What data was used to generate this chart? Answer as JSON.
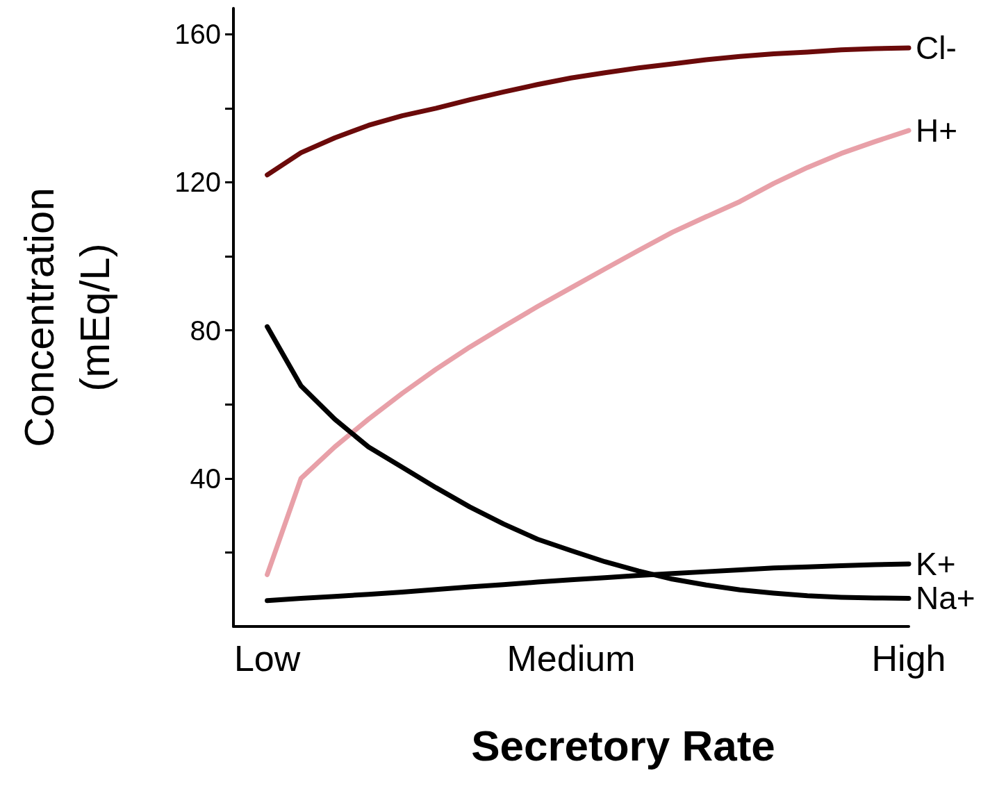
{
  "chart_data": {
    "type": "line",
    "xlabel": "Secretory Rate",
    "ylabel": "Concentration\n(mEq/L)",
    "categories": [
      null,
      "Low",
      null,
      null,
      null,
      null,
      null,
      null,
      null,
      null,
      "Medium",
      null,
      null,
      null,
      null,
      null,
      null,
      null,
      null,
      null,
      "High"
    ],
    "ylim": [
      0,
      167
    ],
    "yticks": [
      {
        "value": 20,
        "label": null
      },
      40,
      {
        "value": 60,
        "label": null
      },
      80,
      {
        "value": 100,
        "label": null
      },
      120,
      {
        "value": 140,
        "label": null
      },
      160
    ],
    "grid": false,
    "legend": false,
    "marker": "none",
    "line_style": "solid",
    "series": [
      {
        "name": "Cl-",
        "color": "#6b0a0a",
        "values": [
          null,
          122,
          128,
          132,
          135.4,
          138,
          140,
          142.3,
          144.4,
          146.4,
          148.2,
          149.6,
          150.9,
          152,
          153.1,
          154,
          154.7,
          155.2,
          155.8,
          156.1,
          156.3
        ]
      },
      {
        "name": "H+",
        "color": "#e8a0a8",
        "values": [
          null,
          14,
          40,
          48.5,
          56,
          63,
          69.5,
          75.5,
          81,
          86.4,
          91.5,
          96.6,
          101.6,
          106.5,
          110.7,
          114.8,
          119.7,
          124,
          127.8,
          131,
          134
        ]
      },
      {
        "name": "K+",
        "color": "#000000",
        "values": [
          null,
          7,
          7.6,
          8.1,
          8.7,
          9.3,
          10,
          10.7,
          11.3,
          12,
          12.6,
          13.2,
          13.8,
          14.3,
          14.8,
          15.3,
          15.8,
          16.1,
          16.4,
          16.7,
          16.9
        ]
      },
      {
        "name": "Na+",
        "color": "#000000",
        "values": [
          null,
          81,
          65,
          56,
          48.5,
          43,
          37.5,
          32.3,
          27.7,
          23.6,
          20.5,
          17.5,
          15,
          12.8,
          11.2,
          9.9,
          9,
          8.3,
          7.9,
          7.7,
          7.6
        ]
      }
    ]
  }
}
